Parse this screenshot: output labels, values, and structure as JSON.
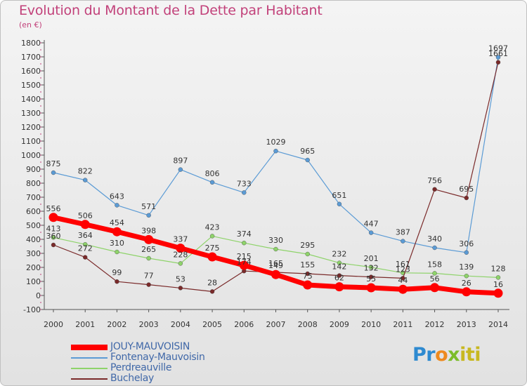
{
  "chart_data": {
    "type": "line",
    "title": "Evolution du Montant de la Dette par Habitant",
    "subtitle": "(en €)",
    "xlabel": "",
    "ylabel": "",
    "x": [
      "2000",
      "2001",
      "2002",
      "2003",
      "2004",
      "2005",
      "2006",
      "2007",
      "2008",
      "2009",
      "2010",
      "2011",
      "2012",
      "2013",
      "2014"
    ],
    "ylim": [
      -100,
      1800
    ],
    "yticks": [
      -100,
      0,
      100,
      200,
      300,
      400,
      500,
      600,
      700,
      800,
      900,
      1000,
      1100,
      1200,
      1300,
      1400,
      1500,
      1600,
      1700,
      1800
    ],
    "grid": false,
    "legend_position": "bottom-left",
    "series": [
      {
        "name": "JOUY-MAUVOISIN",
        "color": "#ff0000",
        "emphasis": true,
        "values": [
          556,
          506,
          454,
          398,
          337,
          275,
          215,
          149,
          75,
          62,
          55,
          44,
          56,
          26,
          16
        ],
        "labels": [
          "556",
          "506",
          "454",
          "398",
          "337",
          "275",
          "215",
          "149",
          "75",
          "62",
          "55",
          "44",
          "56",
          "26",
          "16"
        ]
      },
      {
        "name": "Fontenay-Mauvoisin",
        "color": "#5b9bd5",
        "values": [
          875,
          822,
          643,
          571,
          897,
          806,
          733,
          1029,
          965,
          651,
          447,
          387,
          340,
          306,
          1697
        ],
        "labels": [
          "875",
          "822",
          "643",
          "571",
          "897",
          "806",
          "733",
          "1029",
          "965",
          "651",
          "447",
          "387",
          "340",
          "306",
          "1697"
        ]
      },
      {
        "name": "Perdreauville",
        "color": "#8ed36a",
        "values": [
          413,
          364,
          310,
          265,
          228,
          423,
          374,
          330,
          295,
          232,
          201,
          161,
          158,
          139,
          128
        ],
        "labels": [
          "413",
          "364",
          "310",
          "265",
          "228",
          "423",
          "374",
          "330",
          "295",
          "232",
          "201",
          "161",
          "158",
          "139",
          "128"
        ]
      },
      {
        "name": "Buchelay",
        "color": "#7a2a2a",
        "values": [
          360,
          272,
          99,
          77,
          53,
          28,
          174,
          165,
          155,
          142,
          132,
          123,
          756,
          695,
          1661
        ],
        "labels": [
          "360",
          "272",
          "99",
          "77",
          "53",
          "28",
          "174",
          "165",
          "155",
          "142",
          "132",
          "123",
          "756",
          "695",
          "1661"
        ]
      }
    ]
  },
  "logo": {
    "part1": "Pr",
    "part2": "o",
    "part3": "x",
    "part4": "iti"
  }
}
